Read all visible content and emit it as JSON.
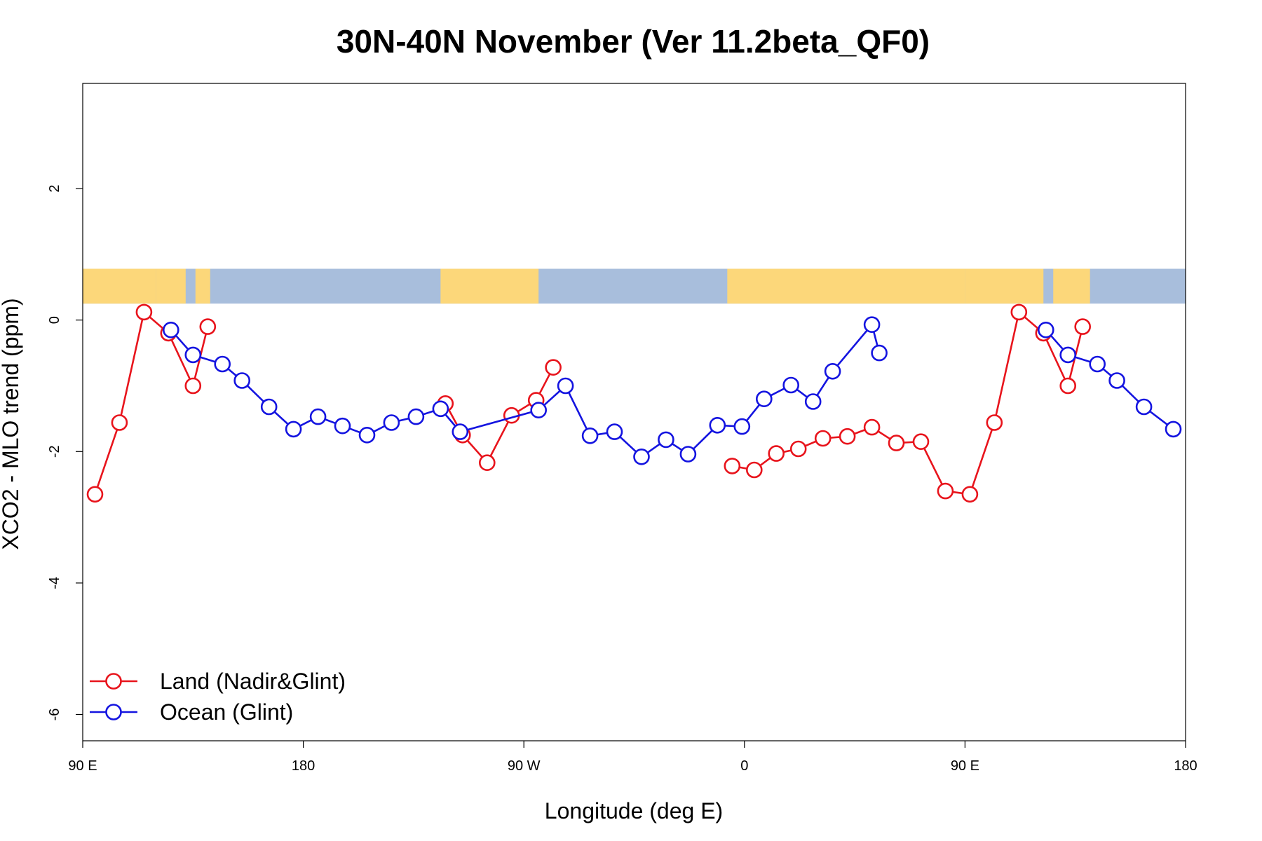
{
  "chart_data": {
    "type": "line",
    "title": "30N-40N November (Ver 11.2beta_QF0)",
    "xlabel": "Longitude (deg E)",
    "ylabel": "XCO2 - MLO trend (ppm)",
    "xlim": [
      90,
      540
    ],
    "ylim": [
      -6.4,
      3.6
    ],
    "x_ticks": [
      {
        "value": 90,
        "label": "90 E"
      },
      {
        "value": 180,
        "label": "180"
      },
      {
        "value": 270,
        "label": "90 W"
      },
      {
        "value": 360,
        "label": "0"
      },
      {
        "value": 450,
        "label": "90 E"
      },
      {
        "value": 540,
        "label": "180"
      }
    ],
    "y_ticks": [
      {
        "value": -6,
        "label": "-6"
      },
      {
        "value": -4,
        "label": "-4"
      },
      {
        "value": -2,
        "label": "-2"
      },
      {
        "value": 0,
        "label": "0"
      },
      {
        "value": 2,
        "label": "2"
      }
    ],
    "map_strip": {
      "y_range": [
        0.25,
        0.78
      ],
      "ocean_color": "#a8bedc",
      "land_color": "#fcd77a",
      "land_segments": [
        [
          90,
          120
        ],
        [
          120,
          132
        ],
        [
          136,
          142
        ],
        [
          236,
          276
        ],
        [
          353,
          450
        ],
        [
          450,
          482
        ],
        [
          486,
          501
        ]
      ]
    },
    "legend": {
      "position": "bottom-left",
      "entries": [
        {
          "label": "Land (Nadir&Glint)",
          "color": "#e8141c"
        },
        {
          "label": "Ocean (Glint)",
          "color": "#1414e0"
        }
      ]
    },
    "series": [
      {
        "name": "Land (Nadir&Glint)",
        "color": "#e8141c",
        "segments": [
          [
            [
              95,
              -2.65
            ],
            [
              105,
              -1.56
            ],
            [
              115,
              0.12
            ],
            [
              125,
              -0.2
            ],
            [
              135,
              -1.0
            ],
            [
              141,
              -0.1
            ]
          ],
          [
            [
              238,
              -1.27
            ],
            [
              245,
              -1.75
            ],
            [
              255,
              -2.17
            ],
            [
              265,
              -1.45
            ],
            [
              275,
              -1.22
            ],
            [
              282,
              -0.72
            ]
          ],
          [
            [
              355,
              -2.22
            ],
            [
              364,
              -2.28
            ],
            [
              373,
              -2.03
            ],
            [
              382,
              -1.96
            ],
            [
              392,
              -1.8
            ],
            [
              402,
              -1.77
            ],
            [
              412,
              -1.63
            ],
            [
              422,
              -1.87
            ],
            [
              432,
              -1.85
            ],
            [
              442,
              -2.6
            ],
            [
              452,
              -2.65
            ],
            [
              462,
              -1.56
            ],
            [
              472,
              0.12
            ],
            [
              482,
              -0.2
            ],
            [
              492,
              -1.0
            ],
            [
              498,
              -0.1
            ]
          ]
        ]
      },
      {
        "name": "Ocean (Glint)",
        "color": "#1414e0",
        "segments": [
          [
            [
              126,
              -0.15
            ],
            [
              135,
              -0.53
            ],
            [
              147,
              -0.67
            ],
            [
              155,
              -0.92
            ],
            [
              166,
              -1.32
            ],
            [
              176,
              -1.66
            ],
            [
              186,
              -1.47
            ],
            [
              196,
              -1.61
            ],
            [
              206,
              -1.75
            ],
            [
              216,
              -1.56
            ],
            [
              226,
              -1.47
            ],
            [
              236,
              -1.35
            ],
            [
              244,
              -1.7
            ],
            [
              276,
              -1.37
            ],
            [
              287,
              -1.0
            ],
            [
              297,
              -1.76
            ],
            [
              307,
              -1.7
            ],
            [
              318,
              -2.08
            ],
            [
              328,
              -1.82
            ],
            [
              337,
              -2.04
            ],
            [
              349,
              -1.6
            ],
            [
              359,
              -1.62
            ],
            [
              368,
              -1.2
            ],
            [
              379,
              -0.99
            ],
            [
              388,
              -1.24
            ],
            [
              396,
              -0.78
            ],
            [
              412,
              -0.07
            ],
            [
              415,
              -0.5
            ]
          ],
          [
            [
              483,
              -0.15
            ],
            [
              492,
              -0.53
            ],
            [
              504,
              -0.67
            ],
            [
              512,
              -0.92
            ],
            [
              523,
              -1.32
            ],
            [
              535,
              -1.66
            ]
          ]
        ]
      }
    ]
  }
}
